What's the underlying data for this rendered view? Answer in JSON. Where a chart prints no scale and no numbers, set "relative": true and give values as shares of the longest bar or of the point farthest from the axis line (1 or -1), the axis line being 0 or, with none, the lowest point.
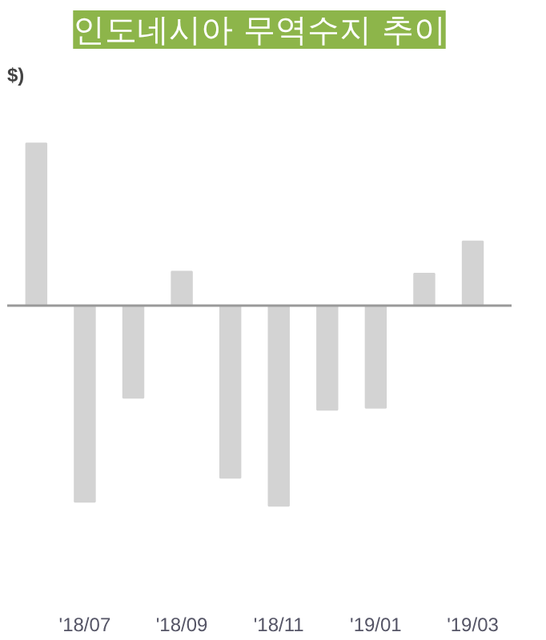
{
  "chart_data": {
    "type": "bar",
    "title": "인도네시아 무역수지 추이",
    "annotations": [
      "$)"
    ],
    "relative": true,
    "color": "#d3d3d3",
    "categories": [
      null,
      "'18/07",
      null,
      "'18/09",
      null,
      "'18/11",
      null,
      "'19/01",
      null,
      "'19/03"
    ],
    "values": [
      0.81,
      -0.98,
      -0.46,
      0.17,
      -0.86,
      -1,
      -0.52,
      -0.51,
      0.16,
      0.32
    ],
    "grid": false
  }
}
